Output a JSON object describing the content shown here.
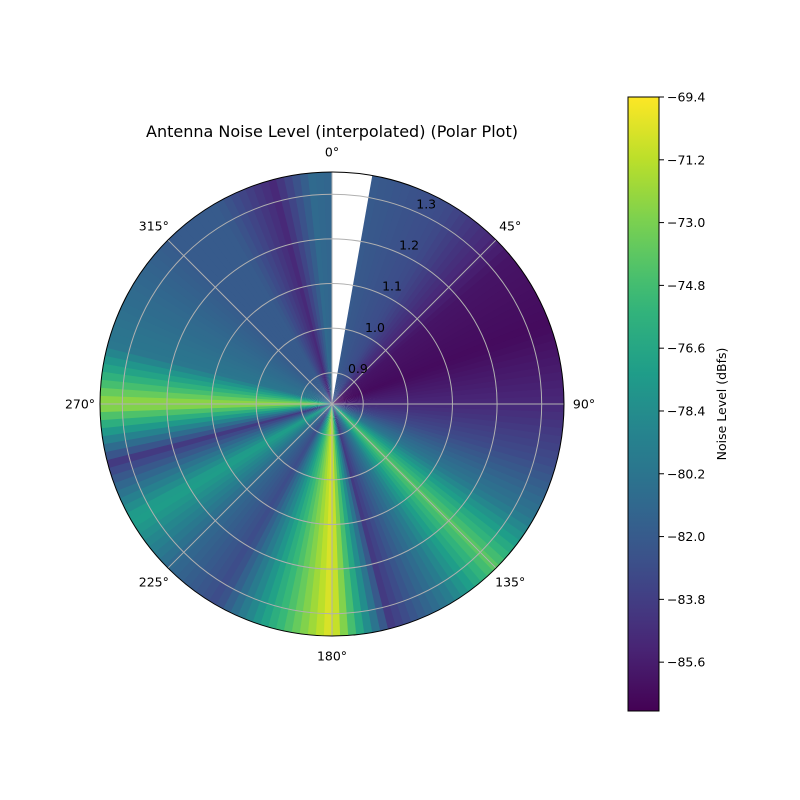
{
  "chart_data": {
    "type": "heatmap",
    "projection": "polar",
    "title": "Antenna Noise Level (interpolated) (Polar Plot)",
    "theta_direction": "clockwise",
    "theta_zero": "top",
    "theta_tick_labels": [
      "0°",
      "45°",
      "90°",
      "135°",
      "180°",
      "225°",
      "270°",
      "315°"
    ],
    "r_ticks": [
      0.9,
      1.0,
      1.1,
      1.2,
      1.3
    ],
    "r_tick_labels": [
      "0.9",
      "1.0",
      "1.1",
      "1.2",
      "1.3"
    ],
    "r_range": [
      0.83,
      1.35
    ],
    "grid": true,
    "missing_sector_deg": [
      0,
      10
    ],
    "azimuth_deg": [
      10,
      30,
      50,
      70,
      90,
      105,
      120,
      135,
      150,
      165,
      180,
      195,
      210,
      225,
      240,
      255,
      270,
      285,
      300,
      315,
      330,
      345,
      355
    ],
    "noise_dbfs": [
      -82,
      -83,
      -86,
      -86.5,
      -85,
      -83,
      -80,
      -74,
      -80,
      -84,
      -70,
      -76,
      -83,
      -81,
      -77,
      -84,
      -72,
      -80,
      -81,
      -82,
      -82,
      -85,
      -81
    ],
    "colorbar": {
      "label": "Noise Level (dBfs)",
      "colormap": "viridis",
      "range": [
        -87,
        -69.4
      ],
      "tick_values": [
        -69.4,
        -71.2,
        -73.0,
        -74.8,
        -76.6,
        -78.4,
        -80.2,
        -82.0,
        -83.8,
        -85.6
      ],
      "tick_labels": [
        "−69.4",
        "−71.2",
        "−73.0",
        "−74.8",
        "−76.6",
        "−78.4",
        "−80.2",
        "−82.0",
        "−83.8",
        "−85.6"
      ]
    }
  }
}
